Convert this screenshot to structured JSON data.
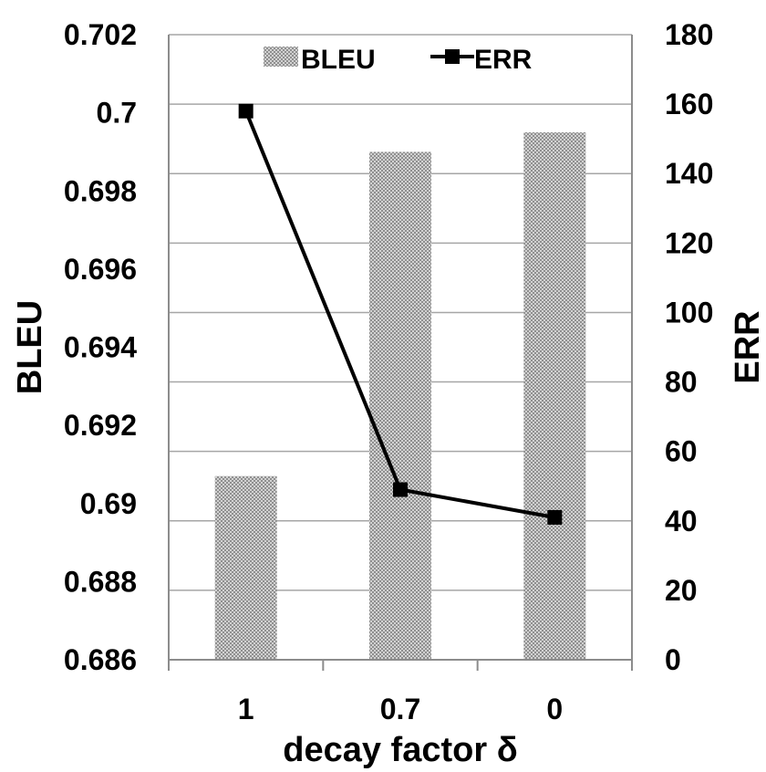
{
  "chart_data": {
    "type": "bar+line",
    "categories": [
      "1",
      "0.7",
      "0"
    ],
    "xlabel": "decay factor δ",
    "series": [
      {
        "name": "BLEU",
        "kind": "bar",
        "axis": "left",
        "values": [
          0.6907,
          0.699,
          0.6995
        ]
      },
      {
        "name": "ERR",
        "kind": "line",
        "axis": "right",
        "values": [
          158,
          49,
          41
        ]
      }
    ],
    "left_axis": {
      "label": "BLEU",
      "ylim": [
        0.686,
        0.702
      ],
      "ticks": [
        "0.702",
        "0.7",
        "0.698",
        "0.696",
        "0.694",
        "0.692",
        "0.69",
        "0.688",
        "0.686"
      ]
    },
    "right_axis": {
      "label": "ERR",
      "ylim": [
        0,
        180
      ],
      "ticks": [
        "180",
        "160",
        "140",
        "120",
        "100",
        "80",
        "60",
        "40",
        "20",
        "0"
      ]
    },
    "grid": "horizontal",
    "legend_position": "top-center",
    "colors": {
      "bar_fill_dark": "#9a9a9a",
      "bar_fill_light": "#d2d2d2",
      "line": "#000000",
      "marker": "#000000",
      "grid": "#a6a6a6"
    }
  }
}
